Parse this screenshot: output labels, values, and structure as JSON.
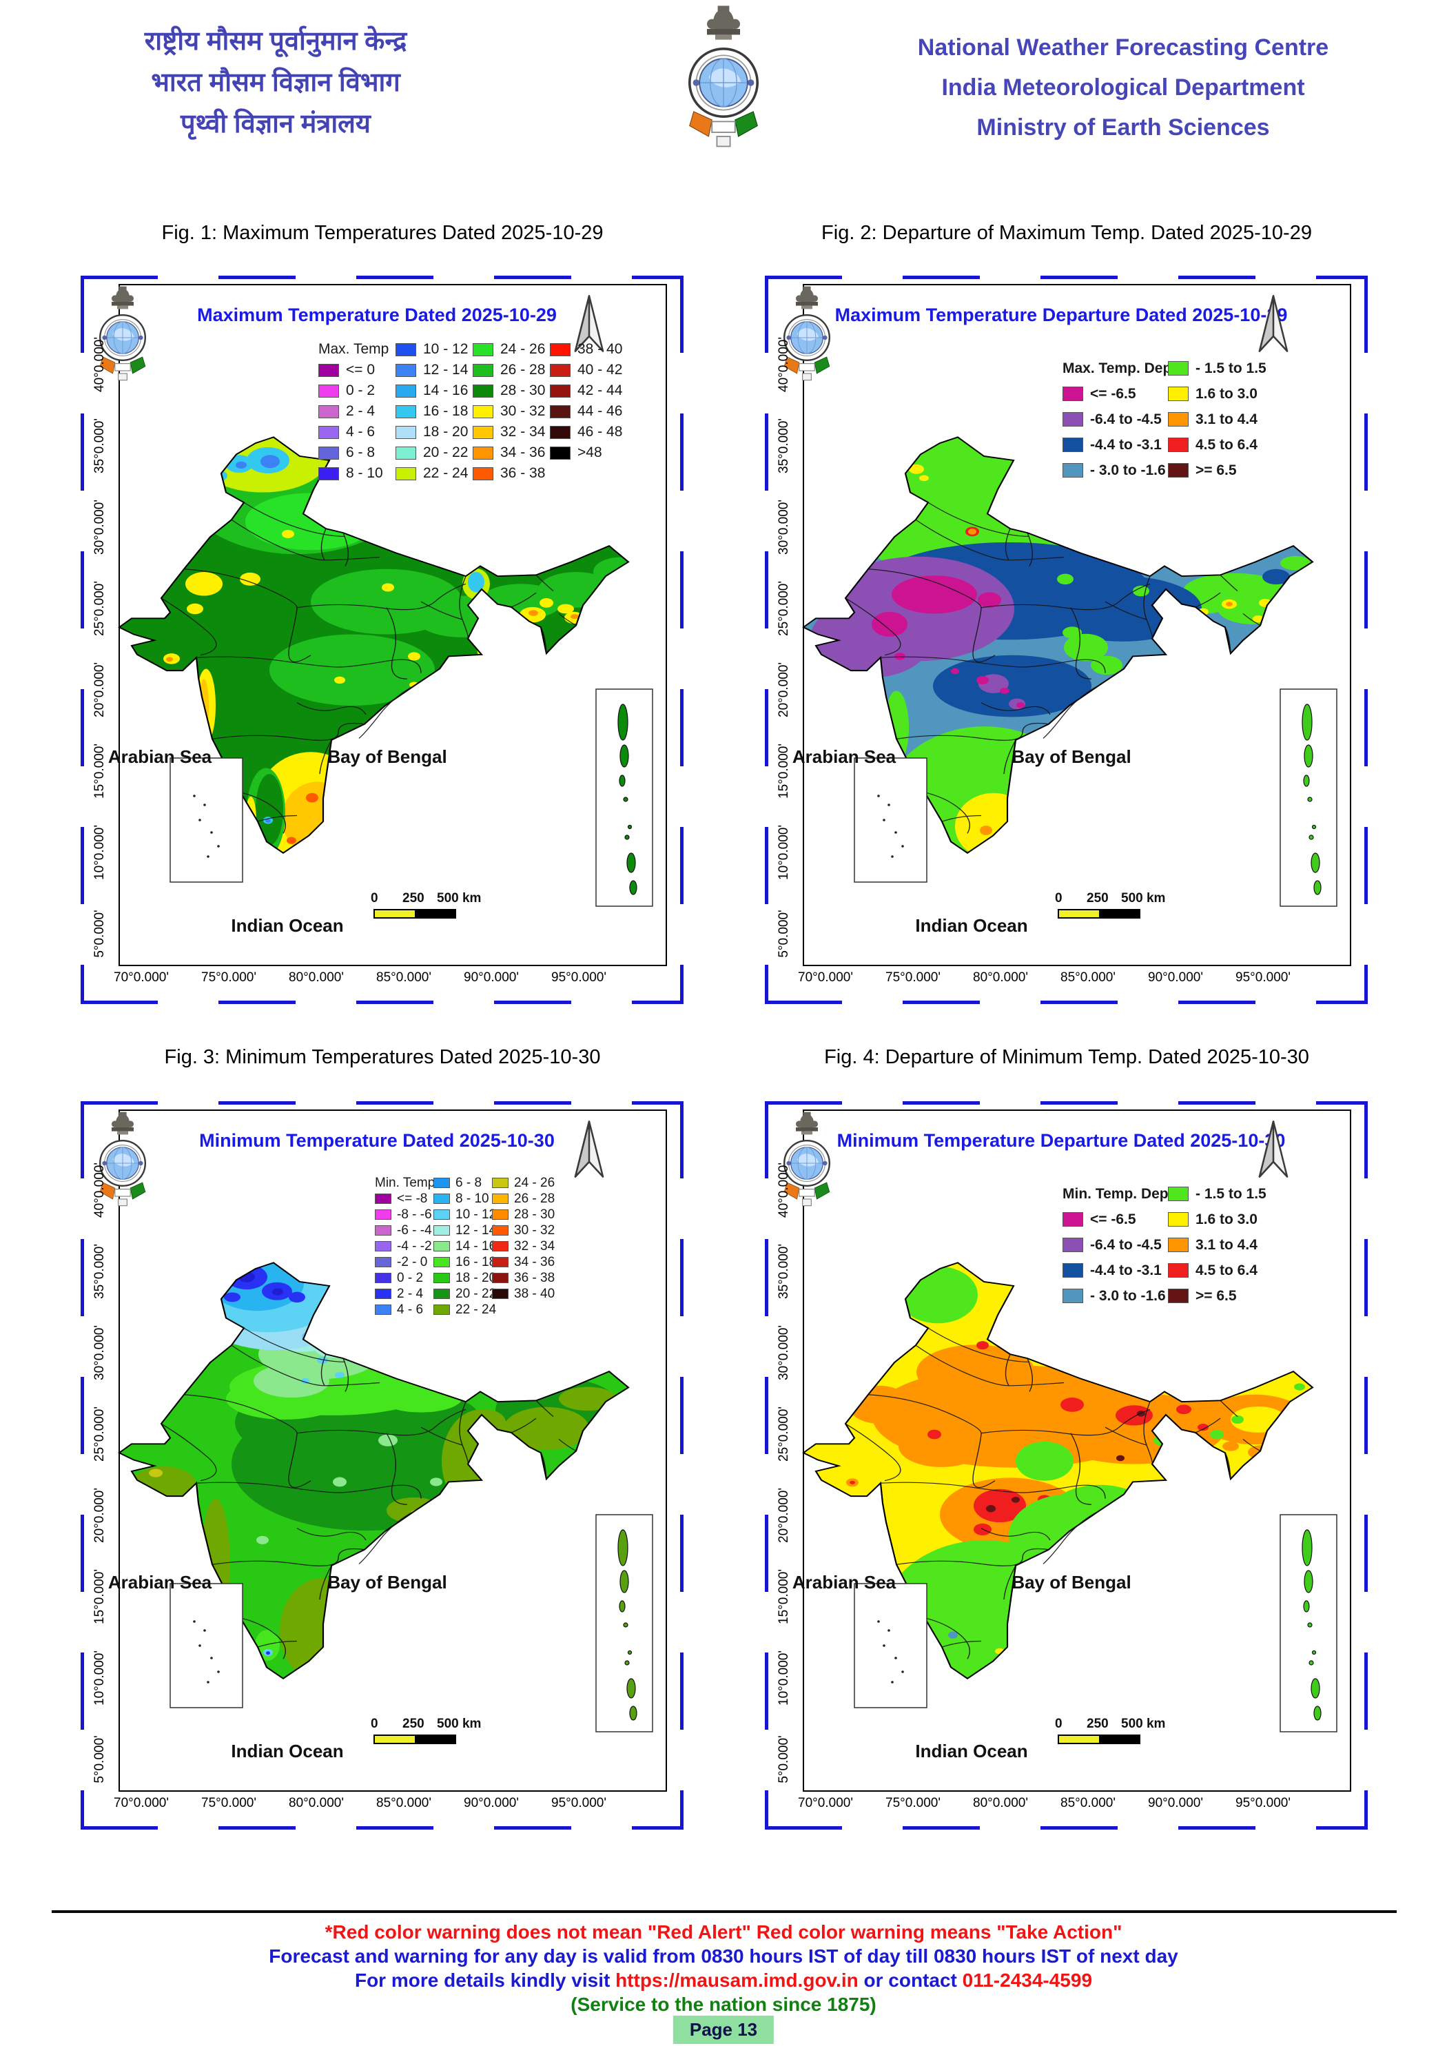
{
  "header": {
    "hindi_line1": "राष्ट्रीय मौसम पूर्वानुमान केन्द्र",
    "hindi_line2": "भारत मौसम विज्ञान विभाग",
    "hindi_line3": "पृथ्वी विज्ञान मंत्रालय",
    "english_line1": "National Weather Forecasting Centre",
    "english_line2": "India Meteorological Department",
    "english_line3": "Ministry of Earth Sciences",
    "logo": "imd-emblem"
  },
  "map_common": {
    "lat_labels": [
      "40°0.000'",
      "35°0.000'",
      "30°0.000'",
      "25°0.000'",
      "20°0.000'",
      "15°0.000'",
      "10°0.000'",
      "5°0.000'"
    ],
    "lon_labels": [
      "70°0.000'",
      "75°0.000'",
      "80°0.000'",
      "85°0.000'",
      "90°0.000'",
      "95°0.000'"
    ],
    "sea_arabian": "Arabian Sea",
    "sea_bengal": "Bay of Bengal",
    "sea_ocean": "Indian Ocean",
    "scale_t0": "0",
    "scale_t1": "250",
    "scale_t2": "500 km",
    "north_arrow": "north-arrow"
  },
  "figures": [
    {
      "caption": "Fig. 1: Maximum Temperatures Dated 2025-10-29",
      "map_title": "Maximum Temperature Dated 2025-10-29",
      "legend": {
        "title": "Max. Temp",
        "columns": [
          {
            "title_first": true,
            "items": [
              {
                "label": "<= 0",
                "color": "#A000A0"
              },
              {
                "label": "0 - 2",
                "color": "#EE3CEE"
              },
              {
                "label": "2 - 4",
                "color": "#CC66CC"
              },
              {
                "label": "4 - 6",
                "color": "#9966F0"
              },
              {
                "label": "6 - 8",
                "color": "#6464DC"
              },
              {
                "label": "8 - 10",
                "color": "#3C1EF5"
              }
            ]
          },
          {
            "items": [
              {
                "label": "10 - 12",
                "color": "#1E50F0"
              },
              {
                "label": "12 - 14",
                "color": "#3C82F5"
              },
              {
                "label": "14 - 16",
                "color": "#28AAF0"
              },
              {
                "label": "16 - 18",
                "color": "#32C8F0"
              },
              {
                "label": "18 - 20",
                "color": "#AEE0F8"
              },
              {
                "label": "20 - 22",
                "color": "#7CF0D2"
              },
              {
                "label": "22 - 24",
                "color": "#C8F000"
              }
            ]
          },
          {
            "items": [
              {
                "label": "24 - 26",
                "color": "#28E228"
              },
              {
                "label": "26 - 28",
                "color": "#1FBE1F"
              },
              {
                "label": "28 - 30",
                "color": "#0C8A0C"
              },
              {
                "label": "30 - 32",
                "color": "#FFF000"
              },
              {
                "label": "32 - 34",
                "color": "#FFC800"
              },
              {
                "label": "34 - 36",
                "color": "#FF9600"
              },
              {
                "label": "36 - 38",
                "color": "#FF5A00"
              }
            ]
          },
          {
            "items": [
              {
                "label": "38 - 40",
                "color": "#FF1400"
              },
              {
                "label": "40 - 42",
                "color": "#C81E14"
              },
              {
                "label": "42 - 44",
                "color": "#961410"
              },
              {
                "label": "44 - 46",
                "color": "#5A1410"
              },
              {
                "label": "46 - 48",
                "color": "#320A0A"
              },
              {
                "label": ">48",
                "color": "#000000"
              }
            ]
          }
        ]
      }
    },
    {
      "caption": "Fig. 2: Departure of Maximum Temp. Dated 2025-10-29",
      "map_title": "Maximum Temperature Departure Dated 2025-10-29",
      "legend": {
        "title": "Max. Temp. Dep.",
        "columns": [
          {
            "title_first": true,
            "items": [
              {
                "label": "<= -6.5",
                "color": "#CC1493"
              },
              {
                "label": "-6.4 to -4.5",
                "color": "#8C50B4"
              },
              {
                "label": "-4.4 to -3.1",
                "color": "#1450A0"
              },
              {
                "label": "- 3.0 to -1.6",
                "color": "#5096BE"
              }
            ]
          },
          {
            "items": [
              {
                "label": "- 1.5 to 1.5",
                "color": "#50E61E"
              },
              {
                "label": "1.6 to 3.0",
                "color": "#FFF000"
              },
              {
                "label": "3.1 to 4.4",
                "color": "#FF9600"
              },
              {
                "label": "4.5 to 6.4",
                "color": "#F01E1E"
              },
              {
                "label": ">= 6.5",
                "color": "#641414"
              }
            ]
          }
        ]
      }
    },
    {
      "caption": "Fig. 3: Minimum Temperatures Dated 2025-10-30",
      "map_title": "Minimum Temperature Dated 2025-10-30",
      "legend": {
        "title": "Min. Temp",
        "columns": [
          {
            "title_first": true,
            "items": [
              {
                "label": "<= -8",
                "color": "#A000A0"
              },
              {
                "label": "-8 - -6",
                "color": "#EE3CEE"
              },
              {
                "label": "-6 - -4",
                "color": "#CC66CC"
              },
              {
                "label": "-4 - -2",
                "color": "#9966F0"
              },
              {
                "label": "-2 - 0",
                "color": "#6666D8"
              },
              {
                "label": "0 - 2",
                "color": "#4632E6"
              },
              {
                "label": "2 - 4",
                "color": "#2832F5"
              },
              {
                "label": "4 - 6",
                "color": "#3C82F5"
              }
            ]
          },
          {
            "items": [
              {
                "label": "6 - 8",
                "color": "#1E96F0"
              },
              {
                "label": "8 - 10",
                "color": "#28B4F0"
              },
              {
                "label": "10 - 12",
                "color": "#5CD2F5"
              },
              {
                "label": "12 - 14",
                "color": "#A0EEE2"
              },
              {
                "label": "14 - 16",
                "color": "#8CE88C"
              },
              {
                "label": "16 - 18",
                "color": "#46E61E"
              },
              {
                "label": "18 - 20",
                "color": "#28C814"
              },
              {
                "label": "20 - 22",
                "color": "#149614"
              },
              {
                "label": "22 - 24",
                "color": "#6FA800"
              }
            ]
          },
          {
            "items": [
              {
                "label": "24 - 26",
                "color": "#C8C814"
              },
              {
                "label": "26 - 28",
                "color": "#FFB400"
              },
              {
                "label": "28 - 30",
                "color": "#FF8C00"
              },
              {
                "label": "30 - 32",
                "color": "#FF5A00"
              },
              {
                "label": "32 - 34",
                "color": "#F02814"
              },
              {
                "label": "34 - 36",
                "color": "#C81E14"
              },
              {
                "label": "36 - 38",
                "color": "#8C1410"
              },
              {
                "label": "38 - 40",
                "color": "#280A0A"
              }
            ]
          }
        ]
      }
    },
    {
      "caption": "Fig. 4: Departure of Minimum Temp. Dated 2025-10-30",
      "map_title": "Minimum Temperature Departure Dated 2025-10-30",
      "legend": {
        "title": "Min. Temp. Dep.",
        "columns": [
          {
            "title_first": true,
            "items": [
              {
                "label": "<= -6.5",
                "color": "#CC1493"
              },
              {
                "label": "-6.4 to -4.5",
                "color": "#8C50B4"
              },
              {
                "label": "-4.4 to -3.1",
                "color": "#1450A0"
              },
              {
                "label": "- 3.0 to -1.6",
                "color": "#5096BE"
              }
            ]
          },
          {
            "items": [
              {
                "label": "- 1.5 to 1.5",
                "color": "#50E61E"
              },
              {
                "label": "1.6 to 3.0",
                "color": "#FFF000"
              },
              {
                "label": "3.1 to 4.4",
                "color": "#FF9600"
              },
              {
                "label": "4.5 to 6.4",
                "color": "#F01E1E"
              },
              {
                "label": ">= 6.5",
                "color": "#641414"
              }
            ]
          }
        ]
      }
    }
  ],
  "footer": {
    "line1": "*Red color warning does not mean \"Red Alert\" Red color warning means \"Take Action\"",
    "line2": "Forecast and warning for any day is valid from 0830 hours IST of day till 0830 hours IST of next day",
    "line3_prefix": "For more details kindly visit ",
    "line3_link": "https://mausam.imd.gov.in",
    "line3_mid": " or contact ",
    "line3_phone": "011-2434-4599",
    "line4": "(Service to the nation since 1875)",
    "page_badge": "Page 13"
  }
}
